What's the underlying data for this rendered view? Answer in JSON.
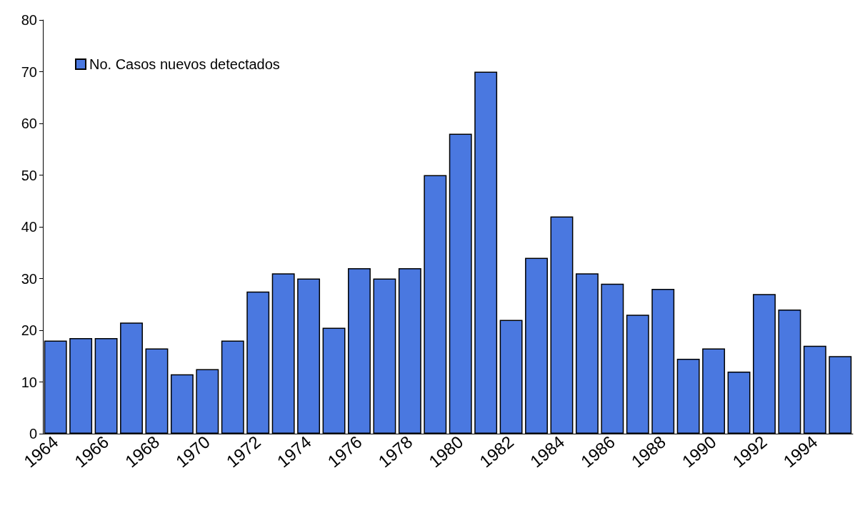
{
  "chart_data": {
    "type": "bar",
    "categories": [
      "1964",
      null,
      "1966",
      null,
      "1968",
      null,
      "1970",
      null,
      "1972",
      null,
      "1974",
      null,
      "1976",
      null,
      "1978",
      null,
      "1980",
      null,
      "1982",
      null,
      "1984",
      null,
      "1986",
      null,
      "1988",
      null,
      "1990",
      null,
      "1992",
      null,
      "1994",
      null
    ],
    "series": [
      {
        "name": "No. Casos nuevos detectados",
        "color": "#4a78e0",
        "values": [
          18,
          18.5,
          18.5,
          21.5,
          16.5,
          11.5,
          12.5,
          18,
          27.5,
          31,
          30,
          20.5,
          32,
          30,
          32,
          50,
          58,
          70,
          22,
          34,
          42,
          31,
          29,
          23,
          28,
          14.5,
          16.5,
          12,
          27,
          24,
          17,
          15
        ]
      }
    ],
    "ylim": [
      0,
      80
    ],
    "yticks": [
      0,
      10,
      20,
      30,
      40,
      50,
      60,
      70,
      80
    ],
    "grid": false,
    "legend": "top left"
  }
}
